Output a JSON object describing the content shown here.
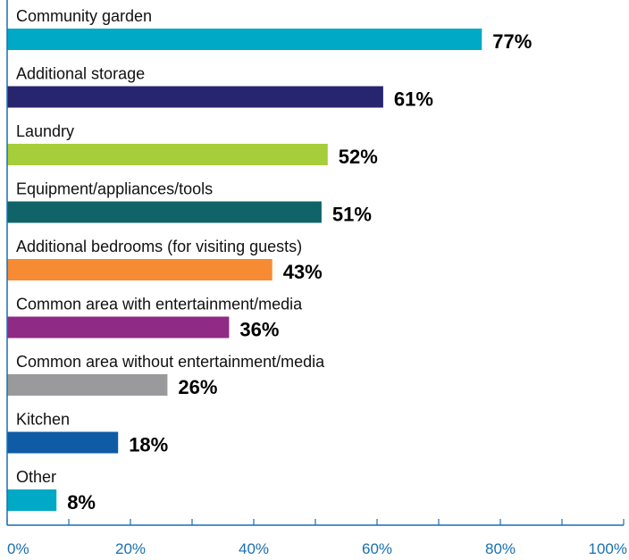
{
  "chart_data": {
    "type": "bar",
    "orientation": "horizontal",
    "title": "",
    "xlabel": "",
    "ylabel": "",
    "xlim": [
      0,
      100
    ],
    "x_ticks": [
      "0%",
      "20%",
      "40%",
      "60%",
      "80%",
      "100%"
    ],
    "grid": false,
    "bars": [
      {
        "category": "Community garden",
        "value": 77,
        "label": "77%",
        "color": "#00a9c6"
      },
      {
        "category": "Additional storage",
        "value": 61,
        "label": "61%",
        "color": "#27256e"
      },
      {
        "category": "Laundry",
        "value": 52,
        "label": "52%",
        "color": "#a6cd3a"
      },
      {
        "category": "Equipment/appliances/tools",
        "value": 51,
        "label": "51%",
        "color": "#0e6468"
      },
      {
        "category": "Additional bedrooms (for visiting guests)",
        "value": 43,
        "label": "43%",
        "color": "#f68b33"
      },
      {
        "category": "Common area with entertainment/media",
        "value": 36,
        "label": "36%",
        "color": "#8f2a85"
      },
      {
        "category": "Common area without entertainment/media",
        "value": 26,
        "label": "26%",
        "color": "#9a9a9c"
      },
      {
        "category": "Kitchen",
        "value": 18,
        "label": "18%",
        "color": "#0f5ba6"
      },
      {
        "category": "Other",
        "value": 8,
        "label": "8%",
        "color": "#00a9c6"
      }
    ],
    "axis_color": "#1a6fb0"
  }
}
